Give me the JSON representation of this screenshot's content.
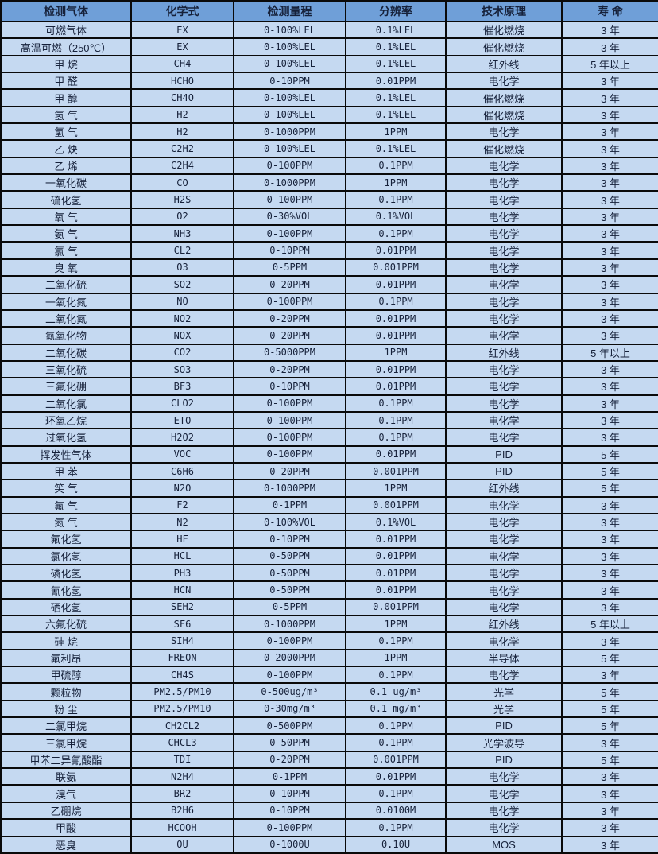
{
  "colors": {
    "header_bg": "#6F9FD8",
    "row_bg": "#C5D9F1",
    "border": "#0A0A0A",
    "text": "#16213A"
  },
  "table": {
    "columns": [
      {
        "key": "gas",
        "label": "检测气体"
      },
      {
        "key": "formula",
        "label": "化学式"
      },
      {
        "key": "range",
        "label": "检测量程"
      },
      {
        "key": "resolution",
        "label": "分辨率"
      },
      {
        "key": "principle",
        "label": "技术原理"
      },
      {
        "key": "lifespan",
        "label": "寿 命"
      }
    ],
    "rows": [
      [
        "可燃气体",
        "EX",
        "0-100%LEL",
        "0.1%LEL",
        "催化燃烧",
        "3 年"
      ],
      [
        "高温可燃（250℃）",
        "EX",
        "0-100%LEL",
        "0.1%LEL",
        "催化燃烧",
        "3 年"
      ],
      [
        "甲 烷",
        "CH4",
        "0-100%LEL",
        "0.1%LEL",
        "红外线",
        "5 年以上"
      ],
      [
        "甲 醛",
        "HCHO",
        "0-10PPM",
        "0.01PPM",
        "电化学",
        "3 年"
      ],
      [
        "甲 醇",
        "CH4O",
        "0-100%LEL",
        "0.1%LEL",
        "催化燃烧",
        "3 年"
      ],
      [
        "氢 气",
        "H2",
        "0-100%LEL",
        "0.1%LEL",
        "催化燃烧",
        "3 年"
      ],
      [
        "氢 气",
        "H2",
        "0-1000PPM",
        "1PPM",
        "电化学",
        "3 年"
      ],
      [
        "乙 炔",
        "C2H2",
        "0-100%LEL",
        "0.1%LEL",
        "催化燃烧",
        "3 年"
      ],
      [
        "乙 烯",
        "C2H4",
        "0-100PPM",
        "0.1PPM",
        "电化学",
        "3 年"
      ],
      [
        "一氧化碳",
        "CO",
        "0-1000PPM",
        "1PPM",
        "电化学",
        "3 年"
      ],
      [
        "硫化氢",
        "H2S",
        "0-100PPM",
        "0.1PPM",
        "电化学",
        "3 年"
      ],
      [
        "氧 气",
        "O2",
        "0-30%VOL",
        "0.1%VOL",
        "电化学",
        "3 年"
      ],
      [
        "氨 气",
        "NH3",
        "0-100PPM",
        "0.1PPM",
        "电化学",
        "3 年"
      ],
      [
        "氯 气",
        "CL2",
        "0-10PPM",
        "0.01PPM",
        "电化学",
        "3 年"
      ],
      [
        "臭 氧",
        "O3",
        "0-5PPM",
        "0.001PPM",
        "电化学",
        "3 年"
      ],
      [
        "二氧化硫",
        "SO2",
        "0-20PPM",
        "0.01PPM",
        "电化学",
        "3 年"
      ],
      [
        "一氧化氮",
        "NO",
        "0-100PPM",
        "0.1PPM",
        "电化学",
        "3 年"
      ],
      [
        "二氧化氮",
        "NO2",
        "0-20PPM",
        "0.01PPM",
        "电化学",
        "3 年"
      ],
      [
        "氮氧化物",
        "NOX",
        "0-20PPM",
        "0.01PPM",
        "电化学",
        "3 年"
      ],
      [
        "二氧化碳",
        "CO2",
        "0-5000PPM",
        "1PPM",
        "红外线",
        "5 年以上"
      ],
      [
        "三氧化硫",
        "SO3",
        "0-20PPM",
        "0.01PPM",
        "电化学",
        "3 年"
      ],
      [
        "三氟化硼",
        "BF3",
        "0-10PPM",
        "0.01PPM",
        "电化学",
        "3 年"
      ],
      [
        "二氧化氯",
        "CLO2",
        "0-100PPM",
        "0.1PPM",
        "电化学",
        "3 年"
      ],
      [
        "环氧乙烷",
        "ETO",
        "0-100PPM",
        "0.1PPM",
        "电化学",
        "3 年"
      ],
      [
        "过氧化氢",
        "H2O2",
        "0-100PPM",
        "0.1PPM",
        "电化学",
        "3 年"
      ],
      [
        "挥发性气体",
        "VOC",
        "0-100PPM",
        "0.01PPM",
        "PID",
        "5 年"
      ],
      [
        "甲 苯",
        "C6H6",
        "0-20PPM",
        "0.001PPM",
        "PID",
        "5 年"
      ],
      [
        "笑 气",
        "N2O",
        "0-1000PPM",
        "1PPM",
        "红外线",
        "5 年"
      ],
      [
        "氟 气",
        "F2",
        "0-1PPM",
        "0.001PPM",
        "电化学",
        "3 年"
      ],
      [
        "氮 气",
        "N2",
        "0-100%VOL",
        "0.1%VOL",
        "电化学",
        "3 年"
      ],
      [
        "氟化氢",
        "HF",
        "0-10PPM",
        "0.01PPM",
        "电化学",
        "3 年"
      ],
      [
        "氯化氢",
        "HCL",
        "0-50PPM",
        "0.01PPM",
        "电化学",
        "3 年"
      ],
      [
        "磷化氢",
        "PH3",
        "0-50PPM",
        "0.01PPM",
        "电化学",
        "3 年"
      ],
      [
        "氰化氢",
        "HCN",
        "0-50PPM",
        "0.01PPM",
        "电化学",
        "3 年"
      ],
      [
        "硒化氢",
        "SEH2",
        "0-5PPM",
        "0.001PPM",
        "电化学",
        "3 年"
      ],
      [
        "六氟化硫",
        "SF6",
        "0-1000PPM",
        "1PPM",
        "红外线",
        "5 年以上"
      ],
      [
        "硅 烷",
        "SIH4",
        "0-100PPM",
        "0.1PPM",
        "电化学",
        "3 年"
      ],
      [
        "氟利昂",
        "FREON",
        "0-2000PPM",
        "1PPM",
        "半导体",
        "5 年"
      ],
      [
        "甲硫醇",
        "CH4S",
        "0-100PPM",
        "0.1PPM",
        "电化学",
        "3 年"
      ],
      [
        "颗粒物",
        "PM2.5/PM10",
        "0-500ug/m³",
        "0.1 ug/m³",
        "光学",
        "5 年"
      ],
      [
        "粉 尘",
        "PM2.5/PM10",
        "0-30mg/m³",
        "0.1 mg/m³",
        "光学",
        "5 年"
      ],
      [
        "二氯甲烷",
        "CH2CL2",
        "0-500PPM",
        "0.1PPM",
        "PID",
        "5 年"
      ],
      [
        "三氯甲烷",
        "CHCL3",
        "0-50PPM",
        "0.1PPM",
        "光学波导",
        "3 年"
      ],
      [
        "甲苯二异氰酸酯",
        "TDI",
        "0-20PPM",
        "0.001PPM",
        "PID",
        "5 年"
      ],
      [
        "联氨",
        "N2H4",
        "0-1PPM",
        "0.01PPM",
        "电化学",
        "3 年"
      ],
      [
        "溴气",
        "BR2",
        "0-10PPM",
        "0.1PPM",
        "电化学",
        "3 年"
      ],
      [
        "乙硼烷",
        "B2H6",
        "0-10PPM",
        "0.0100M",
        "电化学",
        "3 年"
      ],
      [
        "甲酸",
        "HCOOH",
        "0-100PPM",
        "0.1PPM",
        "电化学",
        "3 年"
      ],
      [
        "恶臭",
        "OU",
        "0-1000U",
        "0.10U",
        "MOS",
        "3 年"
      ]
    ]
  }
}
